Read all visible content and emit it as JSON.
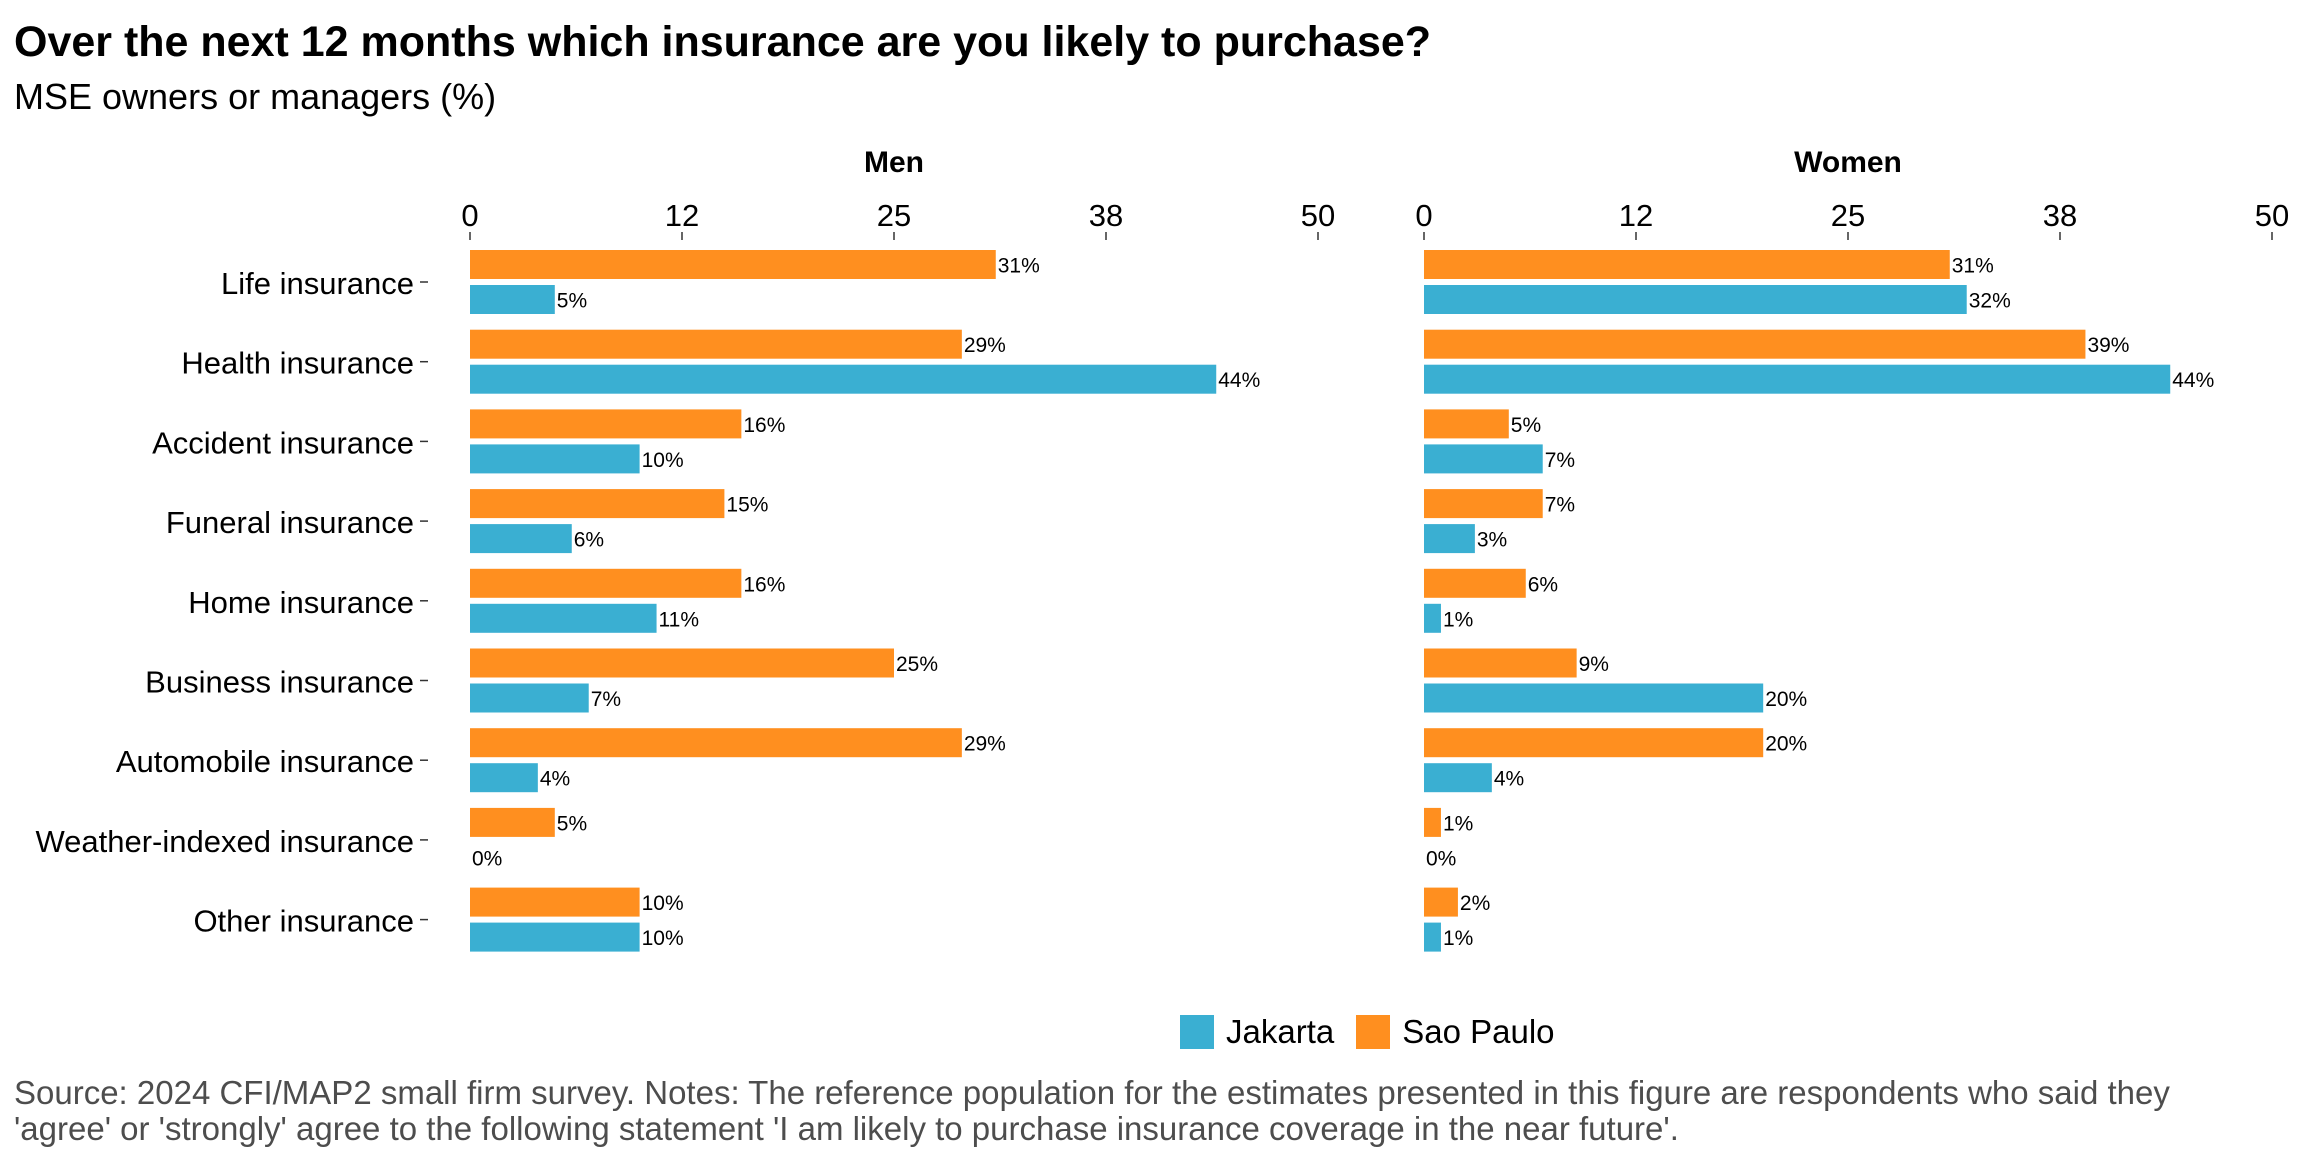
{
  "title": "Over the next 12 months which insurance are you likely to purchase?",
  "subtitle": "MSE owners or managers (%)",
  "source": "Source: 2024 CFI/MAP2 small firm survey. Notes: The reference population for the estimates presented in this figure are respondents who said they 'agree' or 'strongly' agree to the following statement 'I am likely to purchase insurance coverage in the near future'.",
  "legend": {
    "jakarta": "Jakarta",
    "sao_paulo": "Sao Paulo"
  },
  "colors": {
    "jakarta": "#3AAFD2",
    "sao_paulo": "#FF8F1F"
  },
  "chart_data": {
    "type": "bar",
    "orientation": "horizontal",
    "xlim": [
      0,
      50
    ],
    "ticks": [
      0,
      12.5,
      25,
      37.5,
      50
    ],
    "tick_labels": [
      "0",
      "12",
      "25",
      "38",
      "50"
    ],
    "categories": [
      "Life insurance",
      "Health insurance",
      "Accident insurance",
      "Funeral insurance",
      "Home insurance",
      "Business insurance",
      "Automobile insurance",
      "Weather-indexed insurance",
      "Other insurance"
    ],
    "panels": [
      {
        "title": "Men",
        "series": [
          {
            "name": "Sao Paulo",
            "values": [
              31,
              29,
              16,
              15,
              16,
              25,
              29,
              5,
              10
            ],
            "labels": [
              "31%",
              "29%",
              "16%",
              "15%",
              "16%",
              "25%",
              "29%",
              "5%",
              "10%"
            ]
          },
          {
            "name": "Jakarta",
            "values": [
              5,
              44,
              10,
              6,
              11,
              7,
              4,
              0,
              10
            ],
            "labels": [
              "5%",
              "44%",
              "10%",
              "6%",
              "11%",
              "7%",
              "4%",
              "0%",
              "10%"
            ]
          }
        ]
      },
      {
        "title": "Women",
        "series": [
          {
            "name": "Sao Paulo",
            "values": [
              31,
              39,
              5,
              7,
              6,
              9,
              20,
              1,
              2
            ],
            "labels": [
              "31%",
              "39%",
              "5%",
              "7%",
              "6%",
              "9%",
              "20%",
              "1%",
              "2%"
            ]
          },
          {
            "name": "Jakarta",
            "values": [
              32,
              44,
              7,
              3,
              1,
              20,
              4,
              0,
              1
            ],
            "labels": [
              "32%",
              "44%",
              "7%",
              "3%",
              "1%",
              "20%",
              "4%",
              "0%",
              "1%"
            ]
          }
        ]
      }
    ]
  }
}
